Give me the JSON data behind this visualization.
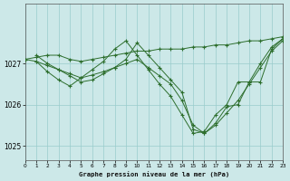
{
  "title": "Graphe pression niveau de la mer (hPa)",
  "bg_color": "#cce8e8",
  "grid_color": "#99cccc",
  "line_color": "#2d6e2d",
  "xlim": [
    0,
    23
  ],
  "ylim": [
    1024.65,
    1028.45
  ],
  "yticks": [
    1025,
    1026,
    1027
  ],
  "xticks": [
    0,
    1,
    2,
    3,
    4,
    5,
    6,
    7,
    8,
    9,
    10,
    11,
    12,
    13,
    14,
    15,
    16,
    17,
    18,
    19,
    20,
    21,
    22,
    23
  ],
  "series": [
    {
      "x": [
        0,
        1,
        2,
        3,
        4,
        5,
        6,
        7,
        8,
        9,
        10,
        11,
        12,
        13,
        14,
        15,
        16,
        17,
        18,
        19,
        20,
        21,
        22,
        23
      ],
      "y": [
        1027.1,
        1027.15,
        1027.2,
        1027.2,
        1027.1,
        1027.05,
        1027.1,
        1027.15,
        1027.2,
        1027.25,
        1027.3,
        1027.3,
        1027.35,
        1027.35,
        1027.35,
        1027.4,
        1027.4,
        1027.45,
        1027.45,
        1027.5,
        1027.55,
        1027.55,
        1027.6,
        1027.65
      ]
    },
    {
      "x": [
        0,
        1,
        2,
        3,
        4,
        5,
        6,
        7,
        8,
        9,
        10,
        11,
        12,
        13,
        14,
        15,
        16,
        17,
        18,
        19,
        20,
        21,
        22,
        23
      ],
      "y": [
        1027.1,
        1027.05,
        1026.95,
        1026.85,
        1026.75,
        1026.65,
        1026.72,
        1026.8,
        1026.9,
        1027.0,
        1027.1,
        1026.9,
        1026.7,
        1026.5,
        1026.1,
        1025.5,
        1025.3,
        1025.5,
        1025.8,
        1026.1,
        1026.5,
        1026.9,
        1027.3,
        1027.55
      ]
    },
    {
      "x": [
        1,
        2,
        3,
        4,
        5,
        6,
        7,
        8,
        9,
        10,
        11,
        12,
        13,
        14,
        15,
        16,
        17,
        18,
        19,
        20,
        21,
        22,
        23
      ],
      "y": [
        1027.2,
        1027.0,
        1026.85,
        1026.7,
        1026.55,
        1026.6,
        1026.75,
        1026.9,
        1027.1,
        1027.5,
        1027.2,
        1026.9,
        1026.6,
        1026.3,
        1025.4,
        1025.3,
        1025.55,
        1025.95,
        1026.0,
        1026.55,
        1026.55,
        1027.35,
        1027.6
      ]
    },
    {
      "x": [
        1,
        2,
        3,
        4,
        5,
        6,
        7,
        8,
        9,
        10,
        11,
        12,
        13,
        14,
        15,
        16,
        17,
        18,
        19,
        20,
        21,
        22,
        23
      ],
      "y": [
        1027.05,
        1026.8,
        1026.6,
        1026.45,
        1026.65,
        1026.85,
        1027.05,
        1027.35,
        1027.55,
        1027.2,
        1026.85,
        1026.5,
        1026.2,
        1025.75,
        1025.3,
        1025.35,
        1025.75,
        1026.0,
        1026.55,
        1026.55,
        1027.0,
        1027.4,
        1027.6
      ]
    }
  ]
}
